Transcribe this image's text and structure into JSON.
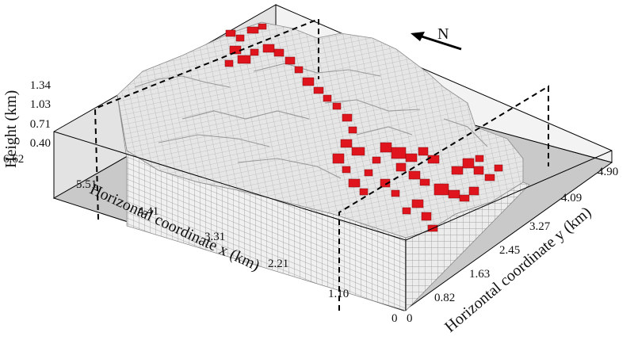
{
  "figure": {
    "north_label": "N",
    "axes": {
      "height": {
        "title": "Height (km)",
        "ticks": [
          "0.40",
          "0.71",
          "1.03",
          "1.34"
        ]
      },
      "x": {
        "title": "Horizontal coordinate x (km)",
        "ticks": [
          "0",
          "1.10",
          "2.21",
          "3.31",
          "4.41",
          "5.51",
          "6.62"
        ]
      },
      "y": {
        "title": "Horizontal coordinate y (km)",
        "ticks": [
          "0",
          "0.82",
          "1.63",
          "2.45",
          "3.27",
          "4.09",
          "4.90"
        ]
      }
    },
    "colors": {
      "terrain_voxel": "#e4e4e4",
      "voxel_edge": "#8a8a8a",
      "highlight_voxel": "#e0141c",
      "base_plane": "#c8c8c8",
      "section_line": "#000000"
    }
  }
}
